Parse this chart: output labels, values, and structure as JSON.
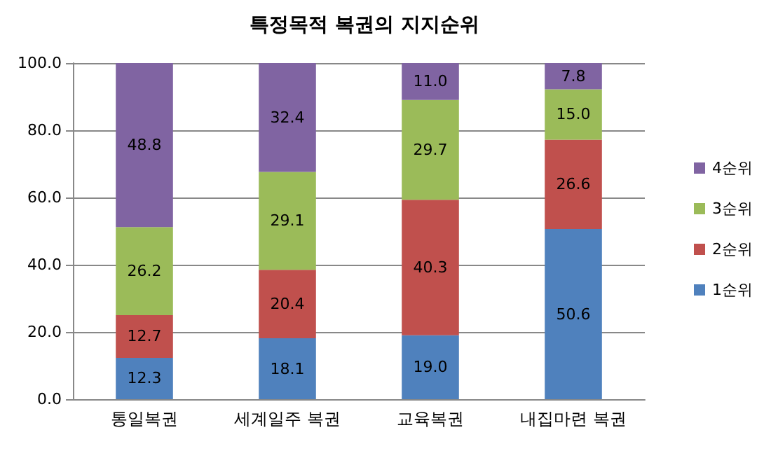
{
  "chart_data": {
    "type": "bar",
    "title": "특정목적 복권의 지지순위",
    "stacked": true,
    "categories": [
      "통일복권",
      "세계일주 복권",
      "교육복권",
      "내집마련 복권"
    ],
    "series": [
      {
        "name": "1순위",
        "color": "#4f81bd",
        "values": [
          12.3,
          18.1,
          19.0,
          50.6
        ],
        "value_labels": [
          "12.3",
          "18.1",
          "19.0",
          "50.6"
        ]
      },
      {
        "name": "2순위",
        "color": "#c0504d",
        "values": [
          12.7,
          20.4,
          40.3,
          26.6
        ],
        "value_labels": [
          "12.7",
          "20.4",
          "40.3",
          "26.6"
        ]
      },
      {
        "name": "3순위",
        "color": "#9bbb59",
        "values": [
          26.2,
          29.1,
          29.7,
          15.0
        ],
        "value_labels": [
          "26.2",
          "29.1",
          "29.7",
          "15.0"
        ]
      },
      {
        "name": "4순위",
        "color": "#8064a2",
        "values": [
          48.8,
          32.4,
          11.0,
          7.8
        ],
        "value_labels": [
          "48.8",
          "32.4",
          "11.0",
          "7.8"
        ]
      }
    ],
    "ylim": [
      0,
      100
    ],
    "yticks": [
      {
        "value": 0,
        "label": "0.0"
      },
      {
        "value": 20,
        "label": "20.0"
      },
      {
        "value": 40,
        "label": "40.0"
      },
      {
        "value": 60,
        "label": "60.0"
      },
      {
        "value": 80,
        "label": "80.0"
      },
      {
        "value": 100,
        "label": "100.0"
      }
    ],
    "grid": "y",
    "legend": "right"
  }
}
